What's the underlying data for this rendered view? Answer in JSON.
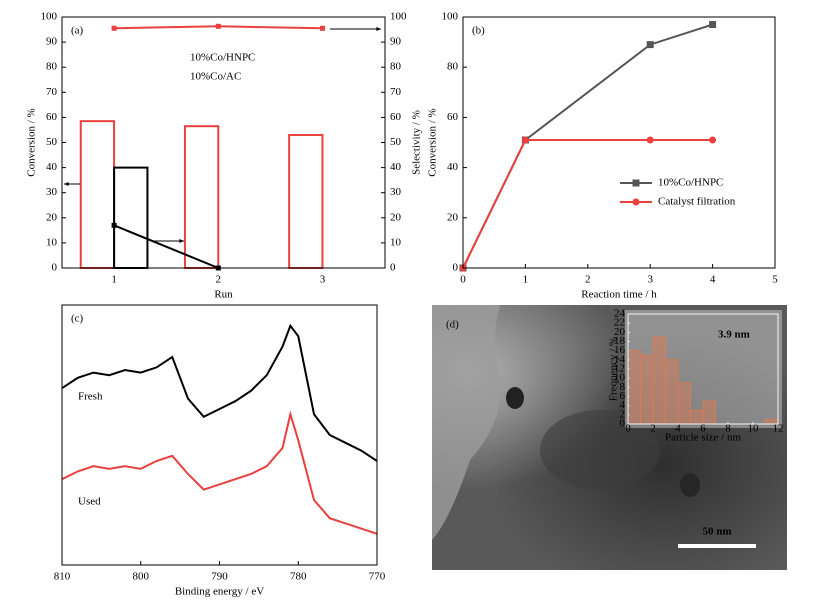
{
  "chart_data": [
    {
      "type": "bar",
      "label": "(a)",
      "xlabel": "Run",
      "ylabel": "Conversion / %",
      "y2label": "Selectivity / %",
      "x": [
        1,
        2,
        3
      ],
      "xlim": [
        0.5,
        3.6
      ],
      "xticks": [
        1,
        2,
        3
      ],
      "ylim": [
        0,
        100
      ],
      "yticks": [
        0,
        10,
        20,
        30,
        40,
        50,
        60,
        70,
        80,
        90,
        100
      ],
      "y2lim": [
        0,
        100
      ],
      "y2ticks": [
        0,
        10,
        20,
        30,
        40,
        50,
        60,
        70,
        80,
        90,
        100
      ],
      "series": [
        {
          "name": "10%Co/HNPC",
          "color": "#e8413e",
          "values": [
            58.5,
            56.5,
            53
          ]
        },
        {
          "name": "10%Co/AC",
          "color": "#000000",
          "values": [
            40,
            null,
            null
          ]
        },
        {
          "type": "line",
          "axis": "y2",
          "color": "#e8413e",
          "marker": "square",
          "values": [
            95.5,
            96.3,
            95.5
          ]
        },
        {
          "type": "line",
          "axis": "y2",
          "color": "#000000",
          "marker": "square",
          "values": [
            17,
            0,
            null
          ]
        }
      ]
    },
    {
      "type": "line",
      "label": "(b)",
      "xlabel": "Reaction time / h",
      "ylabel": "Conversion / %",
      "x": [
        0,
        1,
        3,
        4
      ],
      "xlim": [
        0,
        5
      ],
      "xticks": [
        0,
        1,
        2,
        3,
        4,
        5
      ],
      "ylim": [
        0,
        100
      ],
      "yticks": [
        0,
        20,
        40,
        60,
        80,
        100
      ],
      "series": [
        {
          "name": "10%Co/HNPC",
          "color": "#555555",
          "marker": "square",
          "values": [
            0,
            51,
            89,
            97
          ]
        },
        {
          "name": "Catalyst filtration",
          "color": "#e8413e",
          "marker": "circle",
          "values": [
            0,
            51,
            51,
            51
          ]
        }
      ]
    },
    {
      "type": "line",
      "label": "(c)",
      "xlabel": "Binding energy / eV",
      "x": [
        810,
        808,
        806,
        804,
        802,
        800,
        798,
        796,
        794,
        792,
        790,
        788,
        786,
        784,
        782,
        781,
        780,
        778,
        776,
        774,
        772,
        770
      ],
      "xlim": [
        810,
        770
      ],
      "xticks": [
        810,
        800,
        790,
        780,
        770
      ],
      "ylim": [
        0,
        100
      ],
      "series": [
        {
          "name": "Fresh",
          "color": "#000000",
          "values": [
            68,
            72,
            74,
            73,
            75,
            74,
            76,
            80,
            64,
            57,
            60,
            63,
            67,
            73,
            84,
            92,
            88,
            58,
            50,
            47,
            44,
            40
          ]
        },
        {
          "name": "Used",
          "color": "#e8413e",
          "values": [
            33,
            36,
            38,
            37,
            38,
            37,
            40,
            42,
            35,
            29,
            31,
            33,
            35,
            38,
            45,
            58,
            48,
            25,
            18,
            16,
            14,
            12
          ]
        }
      ]
    },
    {
      "type": "histogram",
      "label": "(d)",
      "xlabel": "Particle size / nm",
      "ylabel": "Frequency / %",
      "annotation": "3.9 nm",
      "scale_bar": "50 nm",
      "color": "#e07a50",
      "bins": [
        0,
        1,
        2,
        3,
        4,
        5,
        6,
        7,
        8,
        9,
        10,
        11,
        12
      ],
      "values": [
        16,
        15,
        19,
        14,
        9,
        3,
        5,
        0,
        0,
        0,
        0,
        1
      ],
      "xlim": [
        0,
        12
      ],
      "xticks": [
        0,
        2,
        4,
        6,
        8,
        10,
        12
      ],
      "ylim": [
        0,
        24
      ],
      "yticks": [
        0,
        2,
        4,
        6,
        8,
        10,
        12,
        14,
        16,
        18,
        20,
        22,
        24
      ]
    }
  ]
}
